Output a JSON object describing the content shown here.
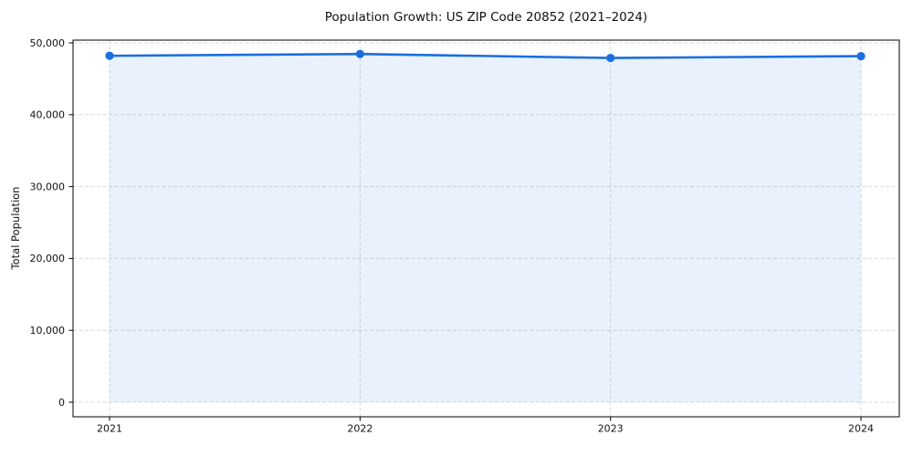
{
  "title": "Population Growth: US ZIP Code 20852 (2021–2024)",
  "chart_data": {
    "type": "area",
    "title": "Population Growth: US ZIP Code 20852 (2021–2024)",
    "xlabel": "",
    "ylabel": "Total Population",
    "x": [
      2021,
      2022,
      2023,
      2024
    ],
    "categories": [
      "2021",
      "2022",
      "2023",
      "2024"
    ],
    "series": [
      {
        "name": "Total Population",
        "values": [
          48200,
          48450,
          47900,
          48150
        ]
      }
    ],
    "fill_baseline": 0,
    "xlim": [
      2020.854,
      2024.153
    ],
    "ylim": [
      -2030,
      50380
    ],
    "xticks": [
      2021,
      2022,
      2023,
      2024
    ],
    "xtick_labels": [
      "2021",
      "2022",
      "2023",
      "2024"
    ],
    "yticks": [
      0,
      10000,
      20000,
      30000,
      40000,
      50000
    ],
    "ytick_labels": [
      "0",
      "10,000",
      "20,000",
      "30,000",
      "40,000",
      "50,000"
    ],
    "grid": true,
    "grid_style": "dashed",
    "legend_position": "none",
    "colors": {
      "line": "#1a6ee0",
      "marker": "#1a6ee0",
      "fill": "rgba(26,110,224,0.095)",
      "grid": "#d9d9d9",
      "spine": "#000000",
      "text": "#111111",
      "background": "#ffffff"
    }
  }
}
